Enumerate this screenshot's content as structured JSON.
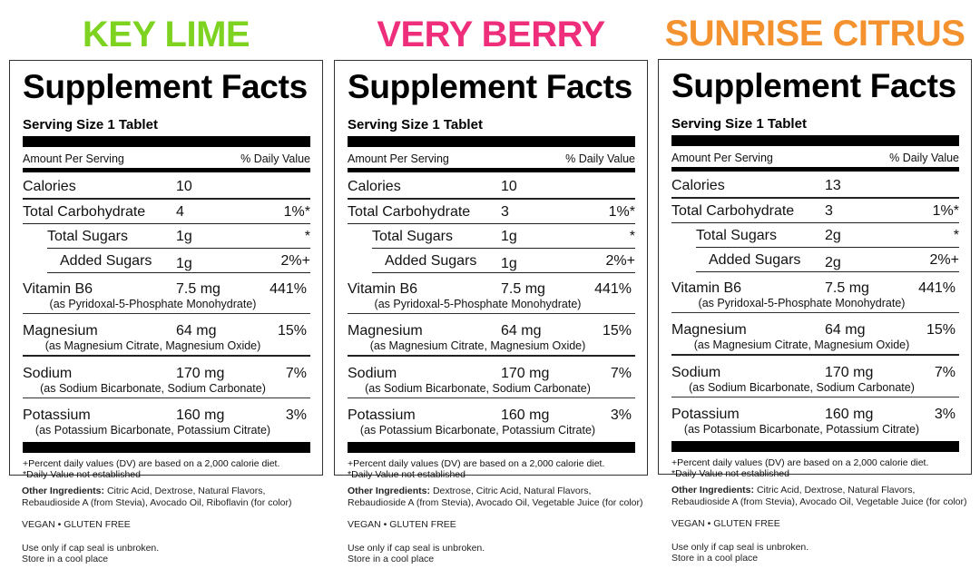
{
  "common": {
    "title": "Supplement Facts",
    "serving_size": "Serving Size 1 Tablet",
    "amount_per_serving": "Amount Per Serving",
    "daily_value_header": "% Daily Value",
    "footnote_1": "+Percent daily values (DV) are based on a 2,000 calorie diet.",
    "footnote_2": "*Daily Value not established",
    "other_ingredients_label": "Other Ingredients:",
    "badges": "VEGAN • GLUTEN FREE",
    "seal_line": "Use only if cap seal is unbroken.",
    "store_line": "Store in a cool place"
  },
  "products": [
    {
      "flavor": "KEY LIME",
      "flavor_color": "#7ED321",
      "calories": {
        "label": "Calories",
        "amount": "10"
      },
      "total_carbohydrate": {
        "label": "Total Carbohydrate",
        "amount": "4",
        "dv": "1%*"
      },
      "total_sugars": {
        "label": "Total Sugars",
        "amount": "1g",
        "dv": "*"
      },
      "added_sugars": {
        "label": "Added Sugars",
        "amount": "1g",
        "dv": "2%+"
      },
      "vitamin_b6": {
        "label": "Vitamin B6",
        "amount": "7.5 mg",
        "dv": "441%",
        "source": "(as Pyridoxal-5-Phosphate Monohydrate)"
      },
      "magnesium": {
        "label": "Magnesium",
        "amount": "64 mg",
        "dv": "15%",
        "source": "(as Magnesium Citrate, Magnesium Oxide)"
      },
      "sodium": {
        "label": "Sodium",
        "amount": "170 mg",
        "dv": "7%",
        "source": "(as Sodium Bicarbonate, Sodium Carbonate)"
      },
      "potassium": {
        "label": "Potassium",
        "amount": "160 mg",
        "dv": "3%",
        "source": "(as Potassium Bicarbonate, Potassium Citrate)"
      },
      "other_ingredients_line1": "Citric Acid, Dextrose, Natural Flavors,",
      "other_ingredients_line2": "Rebaudioside A (from Stevia), Avocado Oil, Riboflavin (for color)"
    },
    {
      "flavor": "VERY BERRY",
      "flavor_color": "#EE2E7A",
      "calories": {
        "label": "Calories",
        "amount": "10"
      },
      "total_carbohydrate": {
        "label": "Total Carbohydrate",
        "amount": "3",
        "dv": "1%*"
      },
      "total_sugars": {
        "label": "Total Sugars",
        "amount": "1g",
        "dv": "*"
      },
      "added_sugars": {
        "label": "Added Sugars",
        "amount": "1g",
        "dv": "2%+"
      },
      "vitamin_b6": {
        "label": "Vitamin B6",
        "amount": "7.5 mg",
        "dv": "441%",
        "source": "(as Pyridoxal-5-Phosphate Monohydrate)"
      },
      "magnesium": {
        "label": "Magnesium",
        "amount": "64 mg",
        "dv": "15%",
        "source": "(as Magnesium Citrate, Magnesium Oxide)"
      },
      "sodium": {
        "label": "Sodium",
        "amount": "170 mg",
        "dv": "7%",
        "source": "(as Sodium Bicarbonate, Sodium Carbonate)"
      },
      "potassium": {
        "label": "Potassium",
        "amount": "160 mg",
        "dv": "3%",
        "source": "(as Potassium Bicarbonate, Potassium Citrate)"
      },
      "other_ingredients_line1": "Dextrose, Citric Acid, Natural Flavors,",
      "other_ingredients_line2": "Rebaudioside A (from Stevia), Avocado Oil, Vegetable Juice (for color)"
    },
    {
      "flavor": "SUNRISE CITRUS",
      "flavor_color": "#F3922F",
      "calories": {
        "label": "Calories",
        "amount": "13"
      },
      "total_carbohydrate": {
        "label": "Total Carbohydrate",
        "amount": "3",
        "dv": "1%*"
      },
      "total_sugars": {
        "label": "Total Sugars",
        "amount": "2g",
        "dv": "*"
      },
      "added_sugars": {
        "label": "Added Sugars",
        "amount": "2g",
        "dv": "2%+"
      },
      "vitamin_b6": {
        "label": "Vitamin B6",
        "amount": "7.5 mg",
        "dv": "441%",
        "source": "(as Pyridoxal-5-Phosphate Monohydrate)"
      },
      "magnesium": {
        "label": "Magnesium",
        "amount": "64 mg",
        "dv": "15%",
        "source": "(as Magnesium Citrate, Magnesium Oxide)"
      },
      "sodium": {
        "label": "Sodium",
        "amount": "170 mg",
        "dv": "7%",
        "source": "(as Sodium Bicarbonate, Sodium Carbonate)"
      },
      "potassium": {
        "label": "Potassium",
        "amount": "160 mg",
        "dv": "3%",
        "source": "(as Potassium Bicarbonate, Potassium Citrate)"
      },
      "other_ingredients_line1": "Citric Acid, Dextrose, Natural Flavors,",
      "other_ingredients_line2": "Rebaudioside A (from Stevia), Avocado Oil, Vegetable Juice (for color)"
    }
  ]
}
